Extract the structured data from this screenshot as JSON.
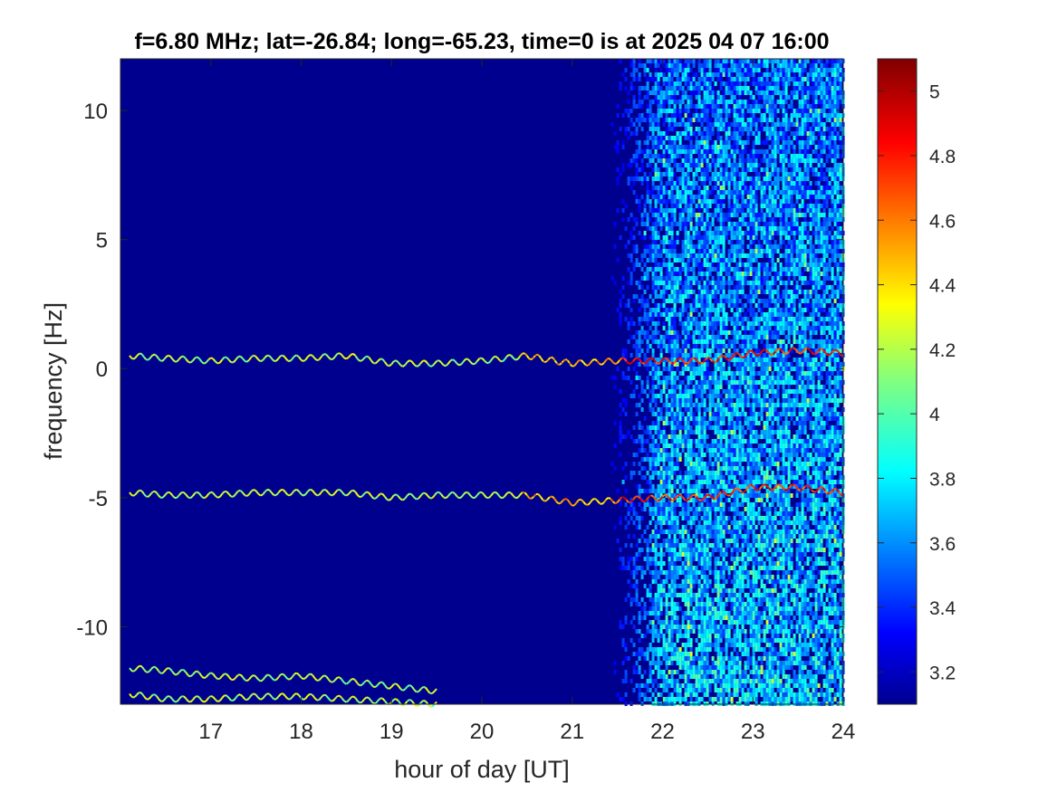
{
  "chart_data": {
    "type": "heatmap",
    "title": "f=6.80 MHz;  lat=-26.84; long=-65.23, time=0 is at 2025 04 07 16:00",
    "xlabel": "hour of day [UT]",
    "ylabel": "frequency [Hz]",
    "xlim": [
      16,
      24
    ],
    "ylim": [
      -13,
      12
    ],
    "xticks": [
      17,
      18,
      19,
      20,
      21,
      22,
      23,
      24
    ],
    "yticks": [
      -10,
      -5,
      0,
      5,
      10
    ],
    "colormap": "jet",
    "colorbar": {
      "clim": [
        3.1,
        5.1
      ],
      "ticks": [
        3.2,
        3.4,
        3.6,
        3.8,
        4,
        4.2,
        4.4,
        4.6,
        4.8,
        5
      ],
      "tick_labels": [
        "3.2",
        "3.4",
        "3.6",
        "3.8",
        "4",
        "4.2",
        "4.4",
        "4.6",
        "4.8",
        "5"
      ]
    },
    "background_level": 3.1,
    "noise_onset_hour": 21.4,
    "traces": [
      {
        "points": [
          [
            16.1,
            0.5
          ],
          [
            16.5,
            0.4
          ],
          [
            17.0,
            0.3
          ],
          [
            17.5,
            0.4
          ],
          [
            18.0,
            0.4
          ],
          [
            18.5,
            0.5
          ],
          [
            19.0,
            0.2
          ],
          [
            19.5,
            0.2
          ],
          [
            20.0,
            0.3
          ],
          [
            20.5,
            0.5
          ],
          [
            20.8,
            0.3
          ],
          [
            21.0,
            0.2
          ],
          [
            21.5,
            0.3
          ],
          [
            22.0,
            0.3
          ],
          [
            22.5,
            0.3
          ],
          [
            23.0,
            0.6
          ],
          [
            23.5,
            0.7
          ],
          [
            24.0,
            0.6
          ]
        ]
      },
      {
        "points": [
          [
            16.1,
            -4.8
          ],
          [
            16.5,
            -4.9
          ],
          [
            17.0,
            -4.9
          ],
          [
            17.5,
            -4.8
          ],
          [
            18.0,
            -4.8
          ],
          [
            18.5,
            -4.8
          ],
          [
            19.0,
            -5.0
          ],
          [
            19.5,
            -4.9
          ],
          [
            20.0,
            -4.9
          ],
          [
            20.5,
            -4.9
          ],
          [
            21.0,
            -5.2
          ],
          [
            21.5,
            -5.1
          ],
          [
            22.0,
            -5.0
          ],
          [
            22.5,
            -5.0
          ],
          [
            23.0,
            -4.6
          ],
          [
            23.5,
            -4.6
          ],
          [
            24.0,
            -4.8
          ]
        ]
      },
      {
        "points": [
          [
            16.1,
            -11.6
          ],
          [
            16.5,
            -11.7
          ],
          [
            17.0,
            -11.9
          ],
          [
            17.5,
            -12.0
          ],
          [
            18.0,
            -11.9
          ],
          [
            18.5,
            -12.1
          ],
          [
            19.0,
            -12.3
          ],
          [
            19.5,
            -12.5
          ]
        ]
      },
      {
        "points": [
          [
            16.1,
            -12.6
          ],
          [
            16.5,
            -12.8
          ],
          [
            17.0,
            -12.8
          ],
          [
            17.5,
            -12.7
          ],
          [
            18.0,
            -12.7
          ],
          [
            18.5,
            -12.8
          ],
          [
            19.0,
            -12.9
          ],
          [
            19.5,
            -13.0
          ]
        ]
      }
    ]
  }
}
